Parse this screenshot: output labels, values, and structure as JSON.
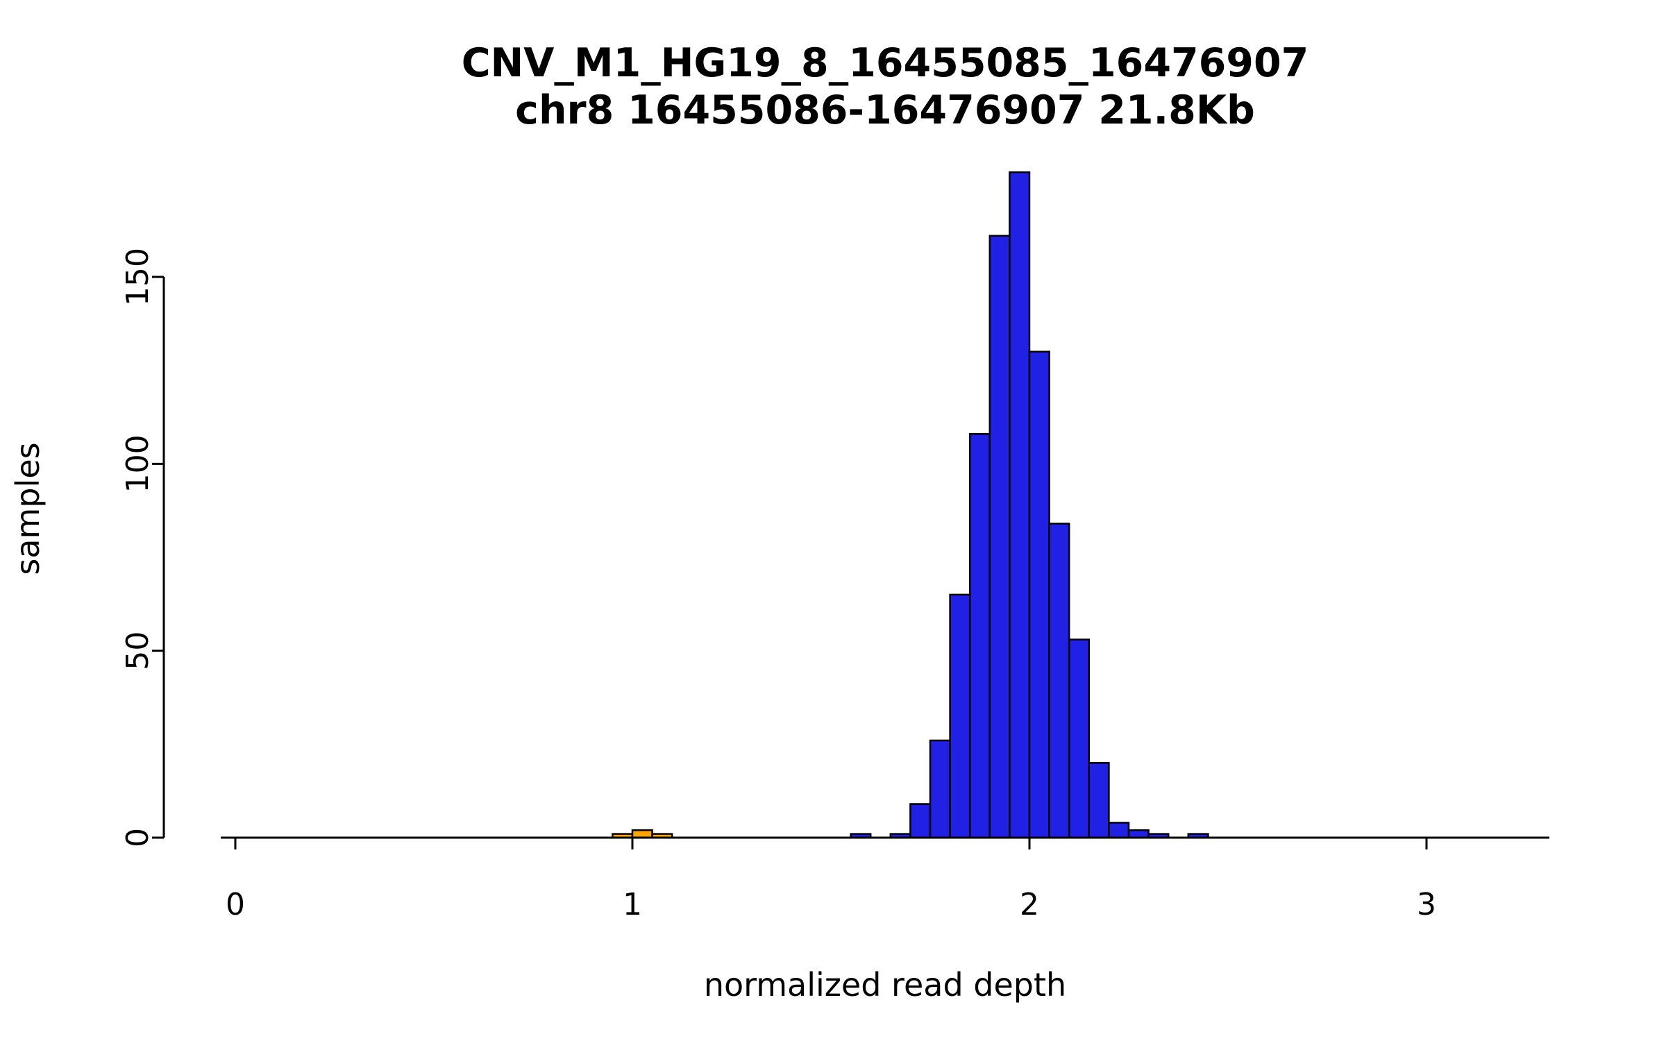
{
  "page": {
    "background": "#ffffff",
    "axis_color": "#000000",
    "text_color": "#000000"
  },
  "chart_data": {
    "type": "bar",
    "subtype": "histogram",
    "title": "CNV_M1_HG19_8_16455085_16476907",
    "subtitle": "chr8 16455086-16476907 21.8Kb",
    "xlabel": "normalized read depth",
    "ylabel": "samples",
    "x_ticks": [
      0,
      1,
      2,
      3
    ],
    "y_ticks": [
      0,
      50,
      100,
      150
    ],
    "xlim": [
      -0.04,
      3.31
    ],
    "ylim": [
      0,
      178
    ],
    "bin_width": 0.05,
    "grid": false,
    "legend": false,
    "bar_stroke": "#000000",
    "series": [
      {
        "name": "orange-series",
        "color": "#FFA500",
        "bins": [
          {
            "x": 0.95,
            "count": 1
          },
          {
            "x": 1.0,
            "count": 2
          },
          {
            "x": 1.05,
            "count": 1
          }
        ]
      },
      {
        "name": "blue-series",
        "color": "#2121E6",
        "bins": [
          {
            "x": 1.55,
            "count": 1
          },
          {
            "x": 1.65,
            "count": 1
          },
          {
            "x": 1.7,
            "count": 9
          },
          {
            "x": 1.75,
            "count": 26
          },
          {
            "x": 1.8,
            "count": 65
          },
          {
            "x": 1.85,
            "count": 108
          },
          {
            "x": 1.9,
            "count": 161
          },
          {
            "x": 1.95,
            "count": 178
          },
          {
            "x": 2.0,
            "count": 130
          },
          {
            "x": 2.05,
            "count": 84
          },
          {
            "x": 2.1,
            "count": 53
          },
          {
            "x": 2.15,
            "count": 20
          },
          {
            "x": 2.2,
            "count": 4
          },
          {
            "x": 2.25,
            "count": 2
          },
          {
            "x": 2.3,
            "count": 1
          },
          {
            "x": 2.4,
            "count": 1
          }
        ]
      }
    ]
  }
}
